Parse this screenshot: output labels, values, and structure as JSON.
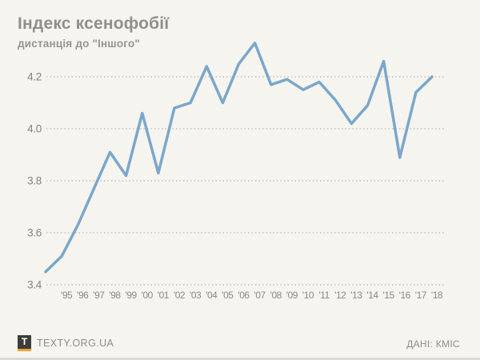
{
  "header": {
    "title": "Індекс ксенофобії",
    "subtitle": "дистанція до \"Іншого\""
  },
  "chart_data": {
    "type": "line",
    "title": "Індекс ксенофобії",
    "subtitle": "дистанція до \"Іншого\"",
    "xlabel": "",
    "ylabel": "",
    "x": [
      1994,
      1995,
      1996,
      1997,
      1998,
      1999,
      2000,
      2001,
      2002,
      2003,
      2004,
      2005,
      2006,
      2007,
      2008,
      2009,
      2010,
      2011,
      2012,
      2013,
      2014,
      2015,
      2016,
      2017,
      2018
    ],
    "series": [
      {
        "name": "Індекс ксенофобії (дистанція до Іншого)",
        "values": [
          3.45,
          3.51,
          3.63,
          3.77,
          3.91,
          3.82,
          4.06,
          3.83,
          4.08,
          4.1,
          4.24,
          4.1,
          4.25,
          4.33,
          4.17,
          4.19,
          4.15,
          4.18,
          4.11,
          4.02,
          4.09,
          4.26,
          3.89,
          4.14,
          4.2
        ]
      }
    ],
    "x_tick_labels": [
      "'95",
      "'96",
      "'97",
      "'98",
      "'99",
      "'00",
      "'01",
      "'02",
      "'03",
      "'04",
      "'05",
      "'06",
      "'07",
      "'08",
      "'09",
      "'10",
      "'11",
      "'12",
      "'13",
      "'14",
      "'15",
      "'16",
      "'17",
      "'18"
    ],
    "first_point_unlabeled": true,
    "y_ticks": [
      4.2,
      4.0,
      3.8,
      3.6,
      3.4
    ],
    "ylim": [
      3.4,
      4.35
    ],
    "grid": "horizontal dotted",
    "legend": "none",
    "line_color": "#7aa7cb",
    "grid_color": "#a9a9a3",
    "tick_label_color": "#8a8a85"
  },
  "footer": {
    "logo_letter": "T",
    "site": "TEXTY.ORG.UA",
    "source": "ДАНІ: КМІС"
  },
  "colors": {
    "background": "#f6f4ef",
    "title_text": "#8f8f8f",
    "line": "#7aa7cb",
    "logo_dark": "#3d3d3d",
    "logo_accent": "#f0a234"
  }
}
